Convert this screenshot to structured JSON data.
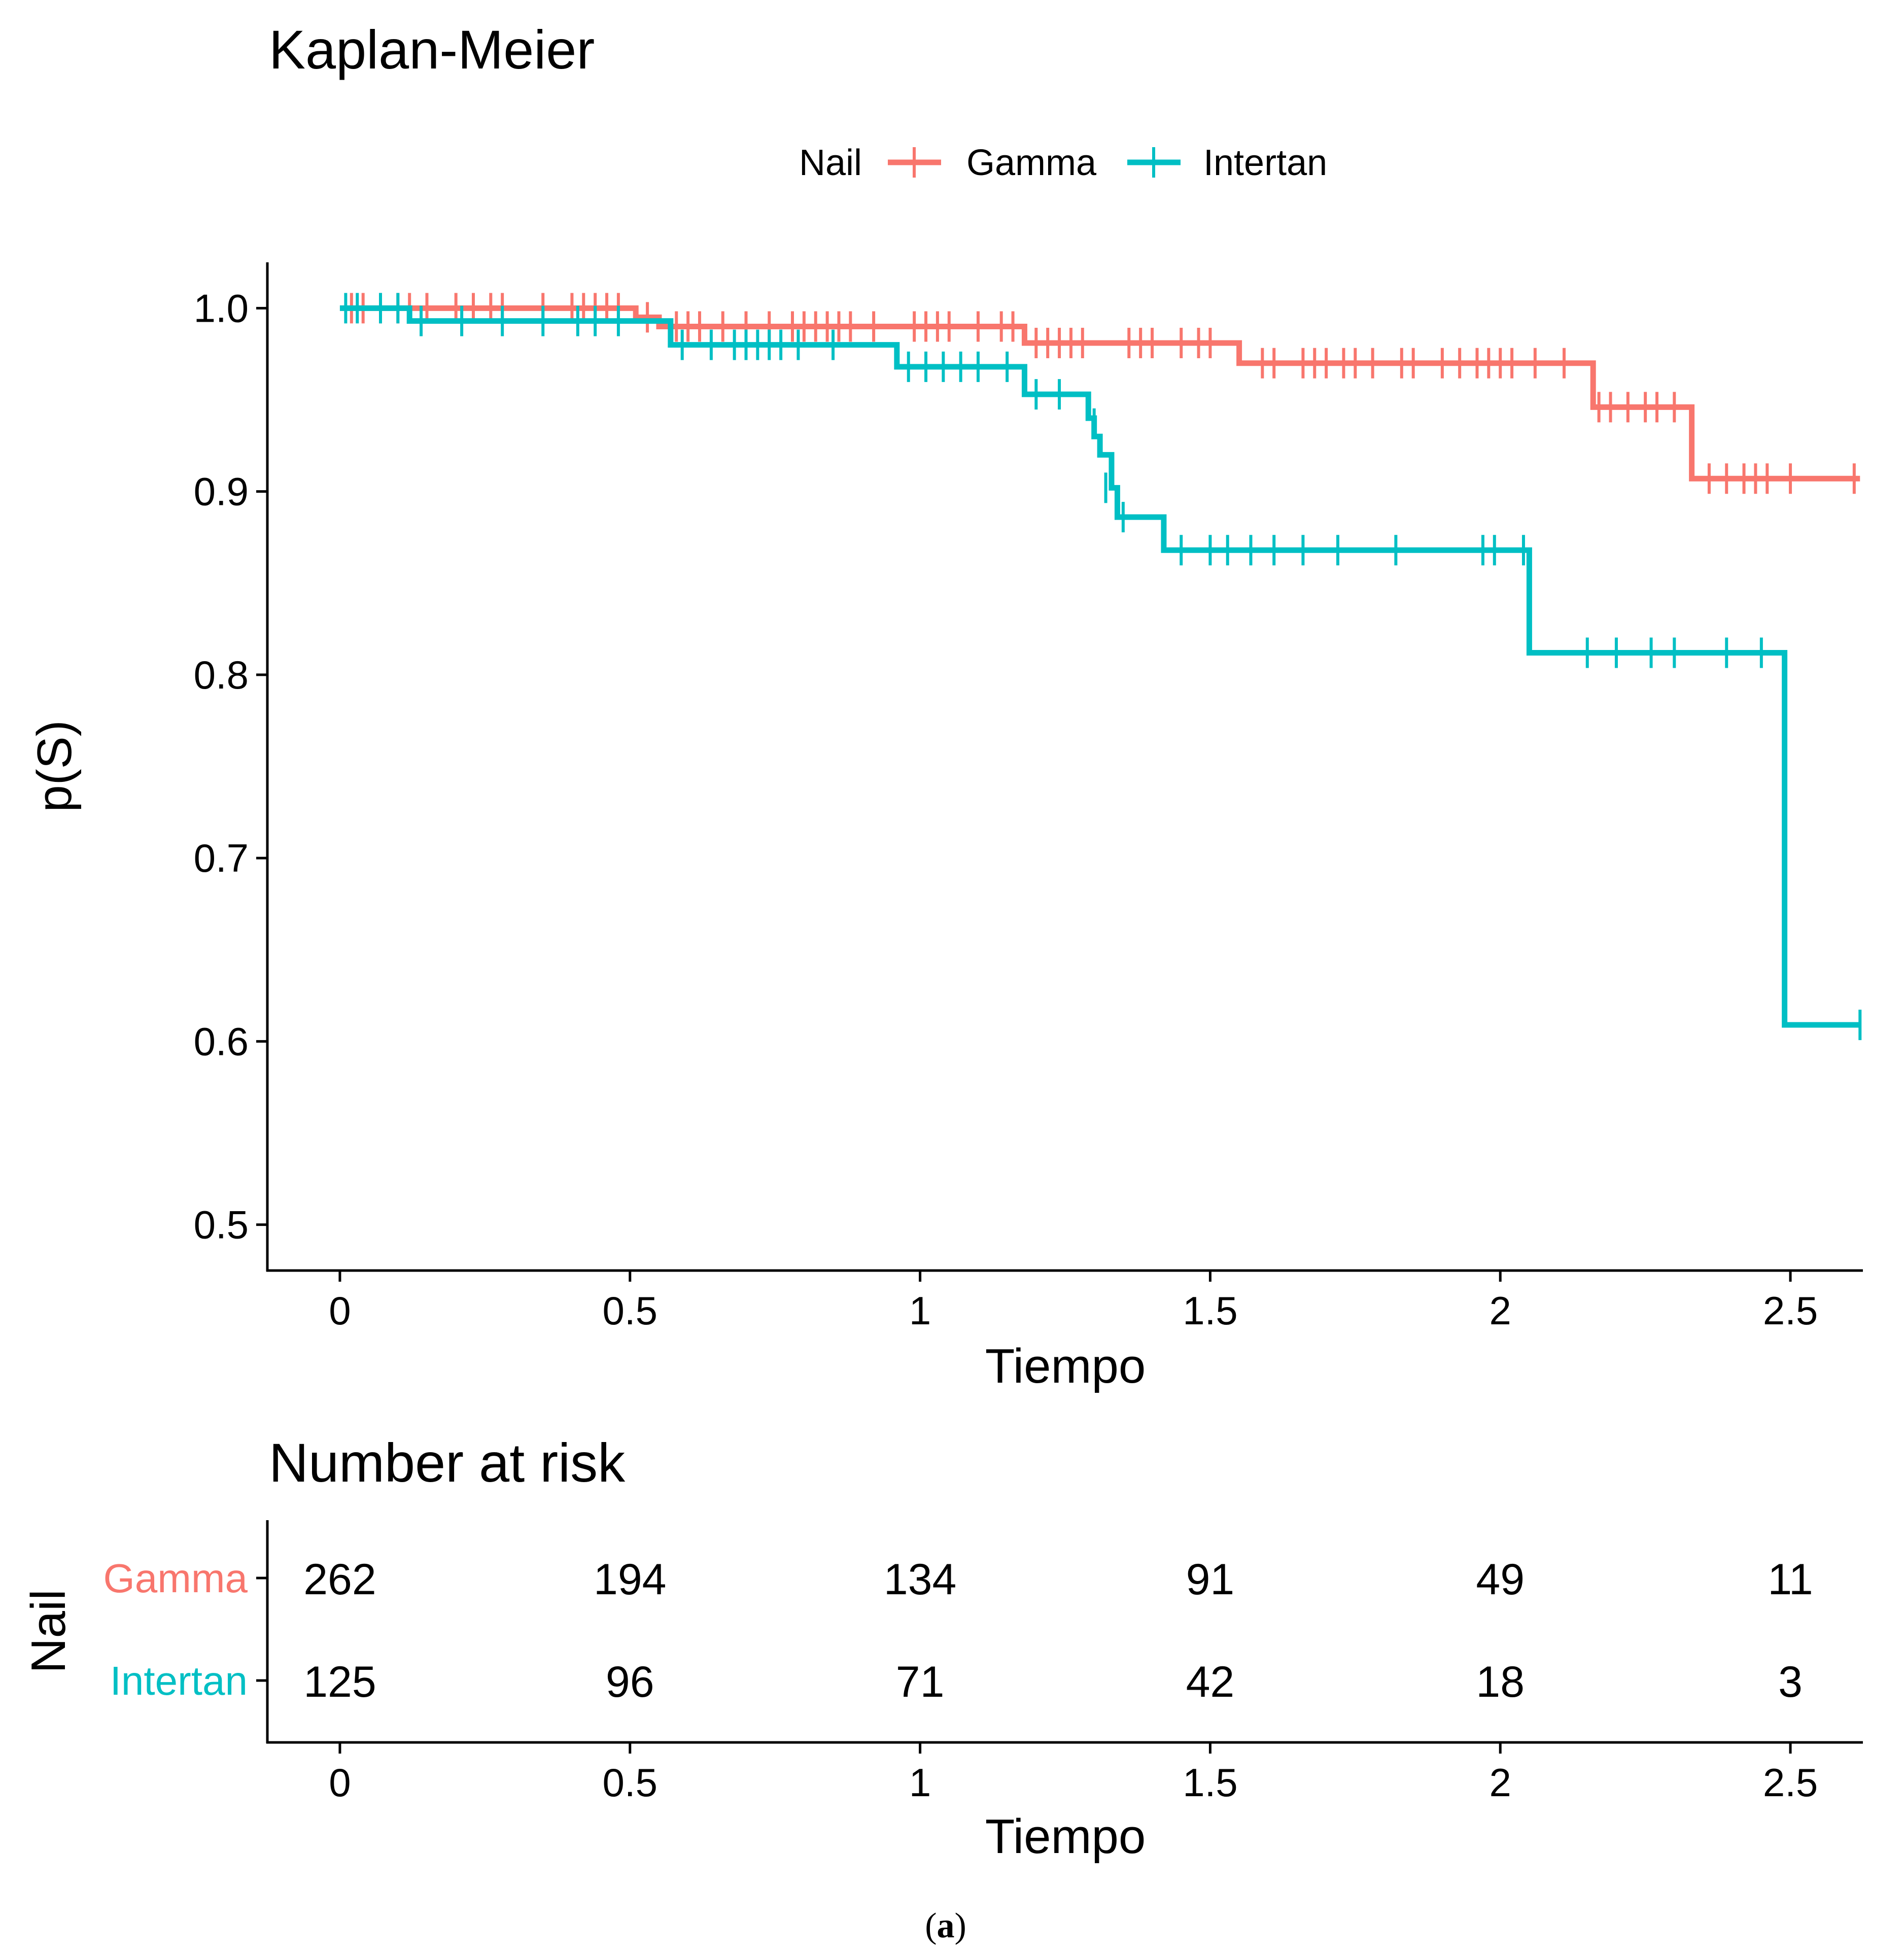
{
  "chart_data": [
    {
      "type": "line",
      "subtype": "kaplan-meier",
      "title": "Kaplan-Meier",
      "xlabel": "Tiempo",
      "ylabel": "p(S)",
      "xlim": [
        -0.125,
        2.625
      ],
      "ylim": [
        0.475,
        1.025
      ],
      "xticks": [
        0,
        0.5,
        1,
        1.5,
        2,
        2.5
      ],
      "xtick_labels": [
        "0",
        "0.5",
        "1",
        "1.5",
        "2",
        "2.5"
      ],
      "yticks": [
        0.5,
        0.6,
        0.7,
        0.8,
        0.9,
        1.0
      ],
      "ytick_labels": [
        "0.5",
        "0.6",
        "0.7",
        "0.8",
        "0.9",
        "1.0"
      ],
      "grid": false,
      "legend": {
        "title": "Nail",
        "position": "top",
        "entries": [
          "Gamma",
          "Intertan"
        ]
      },
      "series": [
        {
          "name": "Gamma",
          "color": "#F8766D",
          "steps": [
            [
              0,
              1.0
            ],
            [
              0.51,
              0.995
            ],
            [
              0.55,
              0.99
            ],
            [
              1.18,
              0.981
            ],
            [
              1.55,
              0.97
            ],
            [
              2.16,
              0.946
            ],
            [
              2.33,
              0.907
            ],
            [
              2.62,
              0.907
            ]
          ],
          "censored": [
            [
              0.02,
              1.0
            ],
            [
              0.04,
              1.0
            ],
            [
              0.07,
              1.0
            ],
            [
              0.1,
              1.0
            ],
            [
              0.12,
              1.0
            ],
            [
              0.15,
              1.0
            ],
            [
              0.2,
              1.0
            ],
            [
              0.23,
              1.0
            ],
            [
              0.26,
              1.0
            ],
            [
              0.28,
              1.0
            ],
            [
              0.35,
              1.0
            ],
            [
              0.4,
              1.0
            ],
            [
              0.42,
              1.0
            ],
            [
              0.44,
              1.0
            ],
            [
              0.46,
              1.0
            ],
            [
              0.48,
              1.0
            ],
            [
              0.53,
              0.995
            ],
            [
              0.58,
              0.99
            ],
            [
              0.6,
              0.99
            ],
            [
              0.62,
              0.99
            ],
            [
              0.66,
              0.99
            ],
            [
              0.7,
              0.99
            ],
            [
              0.74,
              0.99
            ],
            [
              0.78,
              0.99
            ],
            [
              0.8,
              0.99
            ],
            [
              0.82,
              0.99
            ],
            [
              0.84,
              0.99
            ],
            [
              0.86,
              0.99
            ],
            [
              0.88,
              0.99
            ],
            [
              0.92,
              0.99
            ],
            [
              0.99,
              0.99
            ],
            [
              1.01,
              0.99
            ],
            [
              1.03,
              0.99
            ],
            [
              1.05,
              0.99
            ],
            [
              1.1,
              0.99
            ],
            [
              1.14,
              0.99
            ],
            [
              1.16,
              0.99
            ],
            [
              1.2,
              0.981
            ],
            [
              1.22,
              0.981
            ],
            [
              1.24,
              0.981
            ],
            [
              1.26,
              0.981
            ],
            [
              1.28,
              0.981
            ],
            [
              1.36,
              0.981
            ],
            [
              1.38,
              0.981
            ],
            [
              1.4,
              0.981
            ],
            [
              1.45,
              0.981
            ],
            [
              1.48,
              0.981
            ],
            [
              1.5,
              0.981
            ],
            [
              1.59,
              0.97
            ],
            [
              1.61,
              0.97
            ],
            [
              1.66,
              0.97
            ],
            [
              1.68,
              0.97
            ],
            [
              1.7,
              0.97
            ],
            [
              1.73,
              0.97
            ],
            [
              1.75,
              0.97
            ],
            [
              1.78,
              0.97
            ],
            [
              1.83,
              0.97
            ],
            [
              1.85,
              0.97
            ],
            [
              1.9,
              0.97
            ],
            [
              1.93,
              0.97
            ],
            [
              1.96,
              0.97
            ],
            [
              1.98,
              0.97
            ],
            [
              2.0,
              0.97
            ],
            [
              2.02,
              0.97
            ],
            [
              2.06,
              0.97
            ],
            [
              2.11,
              0.97
            ],
            [
              2.17,
              0.946
            ],
            [
              2.19,
              0.946
            ],
            [
              2.22,
              0.946
            ],
            [
              2.25,
              0.946
            ],
            [
              2.27,
              0.946
            ],
            [
              2.3,
              0.946
            ],
            [
              2.36,
              0.907
            ],
            [
              2.39,
              0.907
            ],
            [
              2.42,
              0.907
            ],
            [
              2.44,
              0.907
            ],
            [
              2.46,
              0.907
            ],
            [
              2.5,
              0.907
            ],
            [
              2.61,
              0.907
            ]
          ]
        },
        {
          "name": "Intertan",
          "color": "#00BFC4",
          "steps": [
            [
              0,
              1.0
            ],
            [
              0.12,
              0.993
            ],
            [
              0.57,
              0.98
            ],
            [
              0.96,
              0.968
            ],
            [
              1.18,
              0.953
            ],
            [
              1.29,
              0.94
            ],
            [
              1.3,
              0.93
            ],
            [
              1.31,
              0.92
            ],
            [
              1.33,
              0.902
            ],
            [
              1.34,
              0.886
            ],
            [
              1.42,
              0.868
            ],
            [
              2.05,
              0.812
            ],
            [
              2.49,
              0.609
            ],
            [
              2.62,
              0.609
            ]
          ],
          "censored": [
            [
              0.01,
              1.0
            ],
            [
              0.03,
              1.0
            ],
            [
              0.07,
              1.0
            ],
            [
              0.1,
              1.0
            ],
            [
              0.14,
              0.993
            ],
            [
              0.21,
              0.993
            ],
            [
              0.28,
              0.993
            ],
            [
              0.35,
              0.993
            ],
            [
              0.41,
              0.993
            ],
            [
              0.44,
              0.993
            ],
            [
              0.48,
              0.993
            ],
            [
              0.59,
              0.98
            ],
            [
              0.64,
              0.98
            ],
            [
              0.68,
              0.98
            ],
            [
              0.7,
              0.98
            ],
            [
              0.72,
              0.98
            ],
            [
              0.74,
              0.98
            ],
            [
              0.76,
              0.98
            ],
            [
              0.79,
              0.98
            ],
            [
              0.85,
              0.98
            ],
            [
              0.98,
              0.968
            ],
            [
              1.01,
              0.968
            ],
            [
              1.04,
              0.968
            ],
            [
              1.07,
              0.968
            ],
            [
              1.1,
              0.968
            ],
            [
              1.15,
              0.968
            ],
            [
              1.2,
              0.953
            ],
            [
              1.24,
              0.953
            ],
            [
              1.3,
              0.937
            ],
            [
              1.32,
              0.902
            ],
            [
              1.35,
              0.886
            ],
            [
              1.45,
              0.868
            ],
            [
              1.5,
              0.868
            ],
            [
              1.53,
              0.868
            ],
            [
              1.57,
              0.868
            ],
            [
              1.61,
              0.868
            ],
            [
              1.66,
              0.868
            ],
            [
              1.72,
              0.868
            ],
            [
              1.82,
              0.868
            ],
            [
              1.97,
              0.868
            ],
            [
              1.99,
              0.868
            ],
            [
              2.04,
              0.868
            ],
            [
              2.15,
              0.812
            ],
            [
              2.2,
              0.812
            ],
            [
              2.26,
              0.812
            ],
            [
              2.3,
              0.812
            ],
            [
              2.39,
              0.812
            ],
            [
              2.45,
              0.812
            ],
            [
              2.62,
              0.609
            ]
          ]
        }
      ]
    },
    {
      "type": "table",
      "title": "Number at risk",
      "xlabel": "Tiempo",
      "ylabel": "Nail",
      "xticks": [
        0,
        0.5,
        1,
        1.5,
        2,
        2.5
      ],
      "xtick_labels": [
        "0",
        "0.5",
        "1",
        "1.5",
        "2",
        "2.5"
      ],
      "rows": [
        {
          "name": "Gamma",
          "color": "#F8766D",
          "values": [
            "262",
            "194",
            "134",
            "91",
            "49",
            "11"
          ]
        },
        {
          "name": "Intertan",
          "color": "#00BFC4",
          "values": [
            "125",
            "96",
            "71",
            "42",
            "18",
            "3"
          ]
        }
      ]
    }
  ],
  "caption": {
    "open": "(",
    "letter": "a",
    "close": ")"
  }
}
